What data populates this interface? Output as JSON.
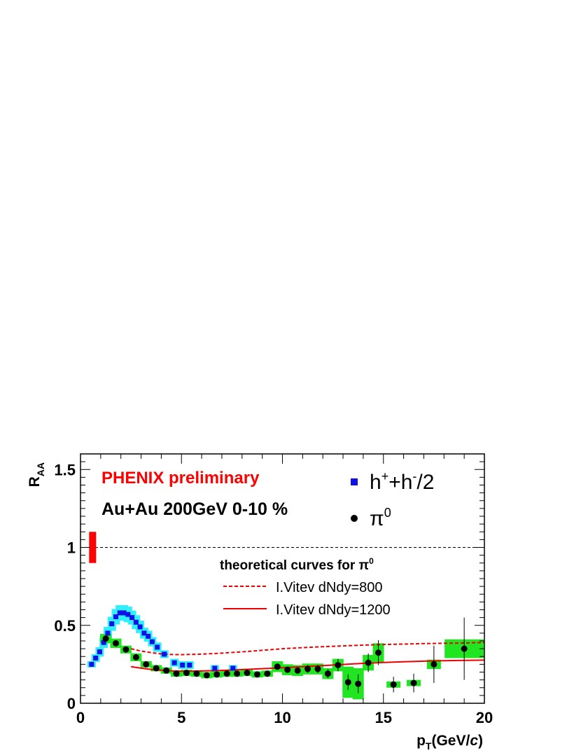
{
  "chart_data": {
    "type": "scatter",
    "xlim": [
      0,
      20
    ],
    "ylim": [
      0,
      1.6
    ],
    "x_ticks": [
      {
        "v": 0,
        "label": "0"
      },
      {
        "v": 5,
        "label": "5"
      },
      {
        "v": 10,
        "label": "10"
      },
      {
        "v": 15,
        "label": "15"
      },
      {
        "v": 20,
        "label": "20"
      }
    ],
    "y_ticks": [
      {
        "v": 0,
        "label": "0"
      },
      {
        "v": 0.5,
        "label": "0.5"
      },
      {
        "v": 1,
        "label": "1"
      },
      {
        "v": 1.5,
        "label": "1.5"
      }
    ],
    "xlabel": {
      "main": "p",
      "sub": "T",
      "unit": "(GeV/",
      "unit_italic": "c",
      "unit_end": ")"
    },
    "ylabel": {
      "main": "R",
      "sub": "AA"
    },
    "annotations": {
      "experiment": "PHENIX preliminary",
      "system": "Au+Au 200GeV 0-10 %",
      "theory_header": "theoretical curves for π",
      "theory_header_sup": "0"
    },
    "legend": {
      "hadrons": {
        "base": "h",
        "sup1": "+",
        "mid": "+h",
        "sup2": "-",
        "end": "/2"
      },
      "pi0": {
        "base": "π",
        "sup": "0"
      },
      "curve_800": "I.Vitev dNdy=800",
      "curve_1200": "I.Vitev dNdy=1200"
    },
    "reference_line": 1.0,
    "normalization_box": {
      "x": 0.6,
      "y_low": 0.9,
      "y_high": 1.1
    },
    "colors": {
      "pi0_marker": "#000000",
      "pi0_syst": "#22e522",
      "hadron_marker": "#1010e8",
      "hadron_syst": "#33eeff",
      "theory": "#ee0000",
      "norm_box": "#ff0000",
      "experiment_label": "#ff0000"
    },
    "series": [
      {
        "name": "h+ + h-/2",
        "marker": "square",
        "points": [
          {
            "x": 0.55,
            "y": 0.25,
            "sy": 0.02
          },
          {
            "x": 0.75,
            "y": 0.29,
            "sy": 0.025
          },
          {
            "x": 0.95,
            "y": 0.33,
            "sy": 0.03
          },
          {
            "x": 1.15,
            "y": 0.39,
            "sy": 0.035
          },
          {
            "x": 1.35,
            "y": 0.45,
            "sy": 0.04
          },
          {
            "x": 1.55,
            "y": 0.51,
            "sy": 0.045
          },
          {
            "x": 1.75,
            "y": 0.555,
            "sy": 0.05
          },
          {
            "x": 1.95,
            "y": 0.58,
            "sy": 0.05
          },
          {
            "x": 2.15,
            "y": 0.58,
            "sy": 0.05
          },
          {
            "x": 2.35,
            "y": 0.57,
            "sy": 0.05
          },
          {
            "x": 2.55,
            "y": 0.55,
            "sy": 0.045
          },
          {
            "x": 2.75,
            "y": 0.52,
            "sy": 0.045
          },
          {
            "x": 2.95,
            "y": 0.49,
            "sy": 0.04
          },
          {
            "x": 3.15,
            "y": 0.45,
            "sy": 0.035
          },
          {
            "x": 3.35,
            "y": 0.43,
            "sy": 0.035
          },
          {
            "x": 3.55,
            "y": 0.395,
            "sy": 0.03
          },
          {
            "x": 3.8,
            "y": 0.36,
            "sy": 0.03
          },
          {
            "x": 4.15,
            "y": 0.315,
            "sy": 0.025
          },
          {
            "x": 4.65,
            "y": 0.26,
            "sy": 0.025
          },
          {
            "x": 5.05,
            "y": 0.245,
            "sy": 0.025
          },
          {
            "x": 5.4,
            "y": 0.245,
            "sy": 0.025
          },
          {
            "x": 6.65,
            "y": 0.225,
            "sy": 0.02
          },
          {
            "x": 7.55,
            "y": 0.225,
            "sy": 0.02
          }
        ]
      },
      {
        "name": "π0",
        "marker": "circle",
        "points": [
          {
            "x": 1.25,
            "y": 0.415,
            "ey": 0.01,
            "sy": 0.03
          },
          {
            "x": 1.75,
            "y": 0.385,
            "ey": 0.01,
            "sy": 0.03
          },
          {
            "x": 2.25,
            "y": 0.345,
            "ey": 0.01,
            "sy": 0.025
          },
          {
            "x": 2.75,
            "y": 0.295,
            "ey": 0.01,
            "sy": 0.025
          },
          {
            "x": 3.25,
            "y": 0.25,
            "ey": 0.01,
            "sy": 0.02
          },
          {
            "x": 3.75,
            "y": 0.225,
            "ey": 0.01,
            "sy": 0.02
          },
          {
            "x": 4.25,
            "y": 0.21,
            "ey": 0.01,
            "sy": 0.02
          },
          {
            "x": 4.75,
            "y": 0.19,
            "ey": 0.01,
            "sy": 0.02
          },
          {
            "x": 5.25,
            "y": 0.195,
            "ey": 0.01,
            "sy": 0.02
          },
          {
            "x": 5.75,
            "y": 0.19,
            "ey": 0.01,
            "sy": 0.02
          },
          {
            "x": 6.25,
            "y": 0.18,
            "ey": 0.01,
            "sy": 0.02
          },
          {
            "x": 6.75,
            "y": 0.185,
            "ey": 0.01,
            "sy": 0.02
          },
          {
            "x": 7.25,
            "y": 0.19,
            "ey": 0.01,
            "sy": 0.02
          },
          {
            "x": 7.75,
            "y": 0.19,
            "ey": 0.015,
            "sy": 0.02
          },
          {
            "x": 8.25,
            "y": 0.195,
            "ey": 0.015,
            "sy": 0.02
          },
          {
            "x": 8.75,
            "y": 0.185,
            "ey": 0.015,
            "sy": 0.02
          },
          {
            "x": 9.25,
            "y": 0.19,
            "ey": 0.015,
            "sy": 0.02
          },
          {
            "x": 9.75,
            "y": 0.235,
            "ey": 0.02,
            "sy": 0.035
          },
          {
            "x": 10.25,
            "y": 0.215,
            "ey": 0.02,
            "sy": 0.035
          },
          {
            "x": 10.75,
            "y": 0.21,
            "ey": 0.02,
            "sy": 0.035
          },
          {
            "x": 11.25,
            "y": 0.22,
            "ey": 0.025,
            "sy": 0.035
          },
          {
            "x": 11.75,
            "y": 0.22,
            "ey": 0.025,
            "sy": 0.035
          },
          {
            "x": 12.25,
            "y": 0.19,
            "ey": 0.03,
            "sy": 0.035
          },
          {
            "x": 12.75,
            "y": 0.245,
            "ey": 0.04,
            "sy": 0.04
          },
          {
            "x": 13.25,
            "y": 0.135,
            "ey": 0.05,
            "sy": 0.1
          },
          {
            "x": 13.75,
            "y": 0.125,
            "ey": 0.06,
            "sy": 0.1
          },
          {
            "x": 14.25,
            "y": 0.26,
            "ey": 0.06,
            "sy": 0.05
          },
          {
            "x": 14.75,
            "y": 0.325,
            "ey": 0.08,
            "sy": 0.06
          },
          {
            "x": 15.5,
            "y": 0.12,
            "ey": 0.05,
            "sy": 0.02
          },
          {
            "x": 16.5,
            "y": 0.13,
            "ey": 0.06,
            "sy": 0.02
          },
          {
            "x": 17.5,
            "y": 0.25,
            "ey": 0.12,
            "sy": 0.03
          },
          {
            "x": 19.0,
            "y": 0.35,
            "ey": 0.2,
            "sy": 0.06
          }
        ]
      }
    ],
    "curves": [
      {
        "name": "I.Vitev dNdy=800",
        "style": "dashed",
        "x": [
          2.5,
          3,
          3.5,
          4,
          4.5,
          5,
          6,
          7,
          8,
          9,
          10,
          11,
          12,
          13,
          14,
          15,
          16,
          17,
          18,
          19,
          20
        ],
        "y": [
          0.35,
          0.335,
          0.325,
          0.317,
          0.313,
          0.312,
          0.315,
          0.322,
          0.33,
          0.34,
          0.35,
          0.357,
          0.363,
          0.368,
          0.373,
          0.377,
          0.38,
          0.383,
          0.385,
          0.387,
          0.39
        ]
      },
      {
        "name": "I.Vitev dNdy=1200",
        "style": "solid",
        "x": [
          2.5,
          3,
          3.5,
          4,
          4.5,
          5,
          6,
          7,
          8,
          9,
          10,
          11,
          12,
          13,
          14,
          15,
          16,
          17,
          18,
          19,
          20
        ],
        "y": [
          0.235,
          0.225,
          0.217,
          0.212,
          0.208,
          0.206,
          0.207,
          0.211,
          0.216,
          0.222,
          0.228,
          0.235,
          0.242,
          0.249,
          0.256,
          0.262,
          0.266,
          0.27,
          0.273,
          0.275,
          0.277
        ]
      }
    ]
  }
}
